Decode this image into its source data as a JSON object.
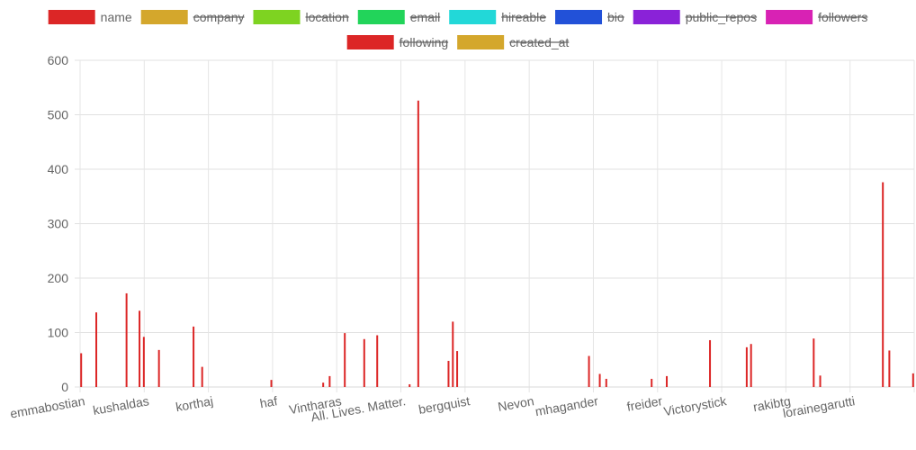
{
  "chart_data": {
    "type": "bar",
    "legend": [
      {
        "label": "name",
        "color": "#dc2626",
        "hidden": false
      },
      {
        "label": "company",
        "color": "#d4a72c",
        "hidden": true
      },
      {
        "label": "location",
        "color": "#7ed321",
        "hidden": true
      },
      {
        "label": "email",
        "color": "#22d45a",
        "hidden": true
      },
      {
        "label": "hireable",
        "color": "#22d8d8",
        "hidden": true
      },
      {
        "label": "bio",
        "color": "#2251d8",
        "hidden": true
      },
      {
        "label": "public_repos",
        "color": "#8a22d8",
        "hidden": true
      },
      {
        "label": "followers",
        "color": "#d822b4",
        "hidden": true
      },
      {
        "label": "following",
        "color": "#dc2626",
        "hidden": true
      },
      {
        "label": "created_at",
        "color": "#d4a72c",
        "hidden": true
      }
    ],
    "x_tick_labels": [
      "emmabostian",
      "kushaldas",
      "korthaj",
      "haf",
      "Vintharas",
      "All. Lives. Matter.",
      "bergquist",
      "Nevon",
      "mhagander",
      "freider",
      "Victorystick",
      "rakibtg",
      "lorainegarutti"
    ],
    "ylim": [
      0,
      600
    ],
    "y_ticks": [
      0,
      100,
      200,
      300,
      400,
      500,
      600
    ],
    "grid": true,
    "series_values": [
      62,
      0,
      0,
      0,
      0,
      0,
      0,
      137,
      0,
      0,
      0,
      0,
      0,
      0,
      0,
      0,
      0,
      0,
      0,
      0,
      0,
      172,
      0,
      0,
      0,
      0,
      0,
      140,
      0,
      92,
      0,
      0,
      0,
      0,
      0,
      0,
      68,
      0,
      0,
      0,
      0,
      0,
      0,
      0,
      0,
      0,
      0,
      0,
      0,
      0,
      0,
      0,
      111,
      0,
      0,
      0,
      37,
      0,
      0,
      0,
      0,
      0,
      0,
      0,
      0,
      0,
      0,
      0,
      0,
      0,
      0,
      0,
      0,
      0,
      0,
      0,
      0,
      0,
      0,
      0,
      0,
      0,
      0,
      0,
      0,
      0,
      0,
      0,
      13,
      0,
      0,
      0,
      0,
      0,
      0,
      0,
      0,
      0,
      0,
      0,
      0,
      0,
      0,
      0,
      0,
      0,
      0,
      0,
      0,
      0,
      0,
      0,
      8,
      0,
      0,
      20,
      0,
      0,
      0,
      0,
      0,
      0,
      99,
      0,
      0,
      0,
      0,
      0,
      0,
      0,
      0,
      88,
      0,
      0,
      0,
      0,
      0,
      95,
      0,
      0,
      0,
      0,
      0,
      0,
      0,
      0,
      0,
      0,
      0,
      0,
      0,
      0,
      5,
      0,
      0,
      0,
      526,
      0,
      0,
      0,
      0,
      0,
      0,
      0,
      0,
      0,
      0,
      0,
      0,
      0,
      48,
      0,
      120,
      0,
      66,
      0,
      0,
      0,
      0,
      0,
      0,
      0,
      0,
      0,
      0,
      0,
      0,
      0,
      0,
      0,
      0,
      0,
      0,
      0,
      0,
      0,
      0,
      0,
      0,
      0,
      0,
      0,
      0,
      0,
      0,
      0,
      0,
      0,
      0,
      0,
      0,
      0,
      0,
      0,
      0,
      0,
      0,
      0,
      0,
      0,
      0,
      0,
      0,
      0,
      0,
      0,
      0,
      0,
      0,
      0,
      0,
      0,
      0,
      0,
      0,
      57,
      0,
      0,
      0,
      0,
      24,
      0,
      0,
      15,
      0,
      0,
      0,
      0,
      0,
      0,
      0,
      0,
      0,
      0,
      0,
      0,
      0,
      0,
      0,
      0,
      0,
      0,
      0,
      0,
      15,
      0,
      0,
      0,
      0,
      0,
      0,
      20,
      0,
      0,
      0,
      0,
      0,
      0,
      0,
      0,
      0,
      0,
      0,
      0,
      0,
      0,
      0,
      0,
      0,
      0,
      0,
      86,
      0,
      0,
      0,
      0,
      0,
      0,
      0,
      0,
      0,
      0,
      0,
      0,
      0,
      0,
      0,
      0,
      73,
      0,
      79,
      0,
      0,
      0,
      0,
      0,
      0,
      0,
      0,
      0,
      0,
      0,
      0,
      0,
      0,
      0,
      0,
      0,
      0,
      0,
      0,
      0,
      0,
      0,
      0,
      0,
      0,
      0,
      0,
      89,
      0,
      0,
      21,
      0,
      0,
      0,
      0,
      0,
      0,
      0,
      0,
      0,
      0,
      0,
      0,
      0,
      0,
      0,
      0,
      0,
      0,
      0,
      0,
      0,
      0,
      0,
      0,
      0,
      0,
      0,
      0,
      376,
      0,
      0,
      67,
      0,
      0,
      0,
      0,
      0,
      0,
      0,
      0,
      0,
      0,
      25
    ]
  }
}
